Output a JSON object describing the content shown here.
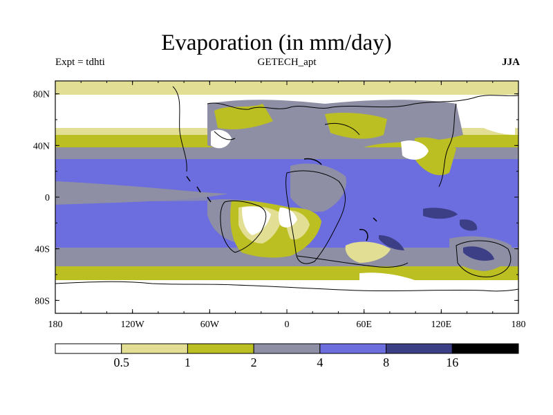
{
  "title": "Evaporation (in mm/day)",
  "experiment_label": "Expt = tdhti",
  "source_label": "GETECH_apt",
  "season_label": "JJA",
  "map": {
    "x_ticks": [
      "180",
      "120W",
      "60W",
      "0",
      "60E",
      "120E",
      "180"
    ],
    "y_ticks": [
      "80N",
      "40N",
      "0",
      "40S",
      "80S"
    ],
    "lat_range": [
      -90,
      90
    ],
    "lon_range": [
      -180,
      180
    ]
  },
  "colorbar": {
    "labels": [
      "0.5",
      "1",
      "2",
      "4",
      "8",
      "16"
    ],
    "colors": [
      "#ffffff",
      "#e2df95",
      "#bcbf22",
      "#8e8ea4",
      "#6c6ee0",
      "#3c3e86",
      "#000000"
    ]
  },
  "colors": {
    "white": "#ffffff",
    "pale_yellow": "#e2df95",
    "olive": "#bcbf22",
    "gray": "#8e8ea4",
    "blue": "#6c6ee0",
    "dark_blue": "#3c3e86"
  }
}
